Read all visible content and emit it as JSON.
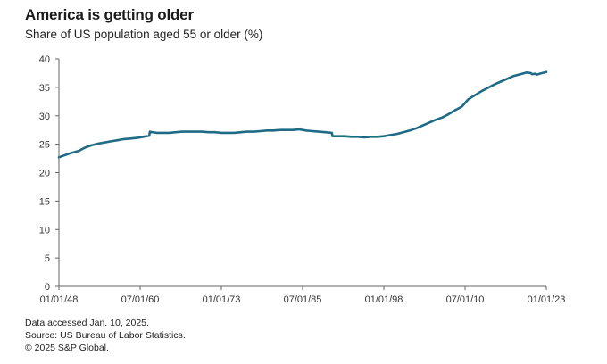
{
  "colors": {
    "line": "#1f6b85",
    "axis": "#666666",
    "text": "#333333"
  },
  "footer": {
    "line1": "Data accessed Jan. 10, 2025.",
    "line2": "Source: US Bureau of Labor Statistics.",
    "line3": "© 2025 S&P Global."
  },
  "chart_data": {
    "type": "line",
    "title": "America is getting older",
    "subtitle": "Share of US population aged 55 or older (%)",
    "xlabel": "",
    "ylabel": "",
    "ylim": [
      0,
      40
    ],
    "xlim": [
      1948.0,
      2023.0
    ],
    "grid": false,
    "yticks": [
      0,
      5,
      10,
      15,
      20,
      25,
      30,
      35,
      40
    ],
    "ytick_labels": [
      "0",
      "5",
      "10",
      "15",
      "20",
      "25",
      "30",
      "35",
      "40"
    ],
    "xticks": [
      1948.0,
      1960.5,
      1973.0,
      1985.5,
      1998.0,
      2010.5,
      2023.0
    ],
    "xtick_labels": [
      "01/01/48",
      "07/01/60",
      "01/01/73",
      "07/01/85",
      "01/01/98",
      "07/01/10",
      "01/01/23"
    ],
    "series": [
      {
        "name": "",
        "x": [
          1948.0,
          1949.0,
          1950.0,
          1951.0,
          1952.0,
          1953.0,
          1954.0,
          1955.0,
          1956.0,
          1957.0,
          1958.0,
          1959.0,
          1960.0,
          1961.0,
          1961.9,
          1962.0,
          1963.0,
          1964.0,
          1965.0,
          1966.0,
          1967.0,
          1968.0,
          1969.0,
          1970.0,
          1971.0,
          1972.0,
          1973.0,
          1974.0,
          1975.0,
          1976.0,
          1977.0,
          1978.0,
          1979.0,
          1980.0,
          1981.0,
          1982.0,
          1983.0,
          1984.0,
          1985.0,
          1986.0,
          1987.0,
          1988.0,
          1989.0,
          1990.0,
          1990.1,
          1991.0,
          1992.0,
          1993.0,
          1994.0,
          1995.0,
          1996.0,
          1997.0,
          1998.0,
          1999.0,
          2000.0,
          2001.0,
          2002.0,
          2003.0,
          2004.0,
          2005.0,
          2006.0,
          2007.0,
          2008.0,
          2009.0,
          2010.0,
          2011.0,
          2012.0,
          2013.0,
          2014.0,
          2015.0,
          2016.0,
          2017.0,
          2018.0,
          2019.0,
          2020.0,
          2020.6,
          2020.8,
          2021.3,
          2021.5,
          2022.0,
          2023.0
        ],
        "values": [
          22.7,
          23.1,
          23.5,
          23.8,
          24.4,
          24.8,
          25.1,
          25.3,
          25.5,
          25.7,
          25.9,
          26.0,
          26.1,
          26.3,
          26.5,
          27.2,
          27.0,
          27.0,
          27.0,
          27.1,
          27.2,
          27.2,
          27.2,
          27.2,
          27.1,
          27.1,
          27.0,
          27.0,
          27.0,
          27.1,
          27.2,
          27.2,
          27.3,
          27.4,
          27.4,
          27.5,
          27.5,
          27.5,
          27.6,
          27.4,
          27.3,
          27.2,
          27.1,
          27.0,
          26.4,
          26.4,
          26.4,
          26.3,
          26.3,
          26.2,
          26.3,
          26.3,
          26.4,
          26.6,
          26.8,
          27.1,
          27.4,
          27.8,
          28.3,
          28.8,
          29.3,
          29.7,
          30.3,
          31.0,
          31.6,
          32.9,
          33.6,
          34.3,
          34.9,
          35.5,
          36.0,
          36.5,
          37.0,
          37.3,
          37.6,
          37.5,
          37.3,
          37.4,
          37.2,
          37.4,
          37.7
        ]
      }
    ]
  }
}
